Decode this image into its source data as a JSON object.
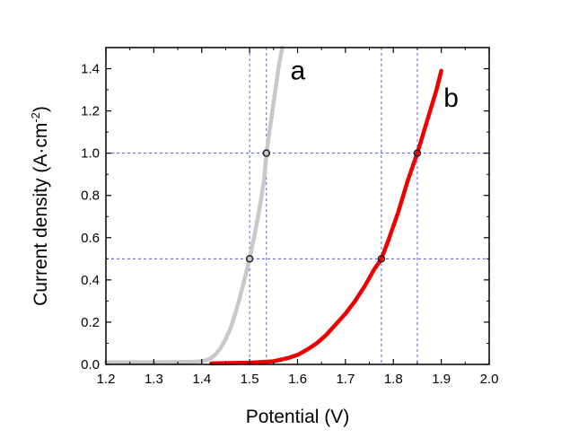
{
  "chart_data": {
    "type": "line",
    "title": "",
    "xlabel": "Potential (V)",
    "ylabel_parts": [
      "Current density (A·cm",
      "-2",
      ")"
    ],
    "xlim": [
      1.2,
      2.0
    ],
    "ylim": [
      0.0,
      1.5
    ],
    "xticks": [
      "1.2",
      "1.3",
      "1.4",
      "1.5",
      "1.6",
      "1.7",
      "1.8",
      "1.9",
      "2.0"
    ],
    "yticks": [
      "0.0",
      "0.2",
      "0.4",
      "0.6",
      "0.8",
      "1.0",
      "1.2",
      "1.4"
    ],
    "grid": false,
    "series": [
      {
        "name": "a",
        "color": "#c8c8c8",
        "x": [
          1.2,
          1.3,
          1.38,
          1.4,
          1.41,
          1.42,
          1.43,
          1.44,
          1.45,
          1.46,
          1.47,
          1.48,
          1.49,
          1.5,
          1.51,
          1.52,
          1.53,
          1.535,
          1.54,
          1.55,
          1.56,
          1.568
        ],
        "y": [
          0.01,
          0.01,
          0.012,
          0.015,
          0.02,
          0.03,
          0.05,
          0.08,
          0.12,
          0.17,
          0.24,
          0.32,
          0.41,
          0.5,
          0.61,
          0.73,
          0.87,
          1.0,
          1.08,
          1.24,
          1.4,
          1.5
        ]
      },
      {
        "name": "b",
        "color": "#ee0000",
        "x": [
          1.42,
          1.5,
          1.55,
          1.58,
          1.6,
          1.62,
          1.64,
          1.66,
          1.68,
          1.7,
          1.72,
          1.74,
          1.76,
          1.775,
          1.79,
          1.81,
          1.83,
          1.85,
          1.87,
          1.89,
          1.9
        ],
        "y": [
          0.005,
          0.008,
          0.015,
          0.03,
          0.045,
          0.07,
          0.1,
          0.14,
          0.19,
          0.24,
          0.3,
          0.37,
          0.45,
          0.5,
          0.59,
          0.72,
          0.87,
          1.0,
          1.15,
          1.3,
          1.39
        ]
      }
    ],
    "reference_lines": {
      "horizontal_y": [
        0.5,
        1.0
      ],
      "vertical_x": [
        1.5,
        1.535,
        1.775,
        1.85
      ],
      "style": "dashed",
      "color": "#3a3ac8"
    },
    "markers": [
      {
        "series": "a",
        "x": 1.5,
        "y": 0.5
      },
      {
        "series": "a",
        "x": 1.535,
        "y": 1.0
      },
      {
        "series": "b",
        "x": 1.775,
        "y": 0.5
      },
      {
        "series": "b",
        "x": 1.85,
        "y": 1.0
      }
    ],
    "curve_labels": [
      {
        "text": "a",
        "x": 1.585,
        "y": 1.35
      },
      {
        "text": "b",
        "x": 1.905,
        "y": 1.22
      }
    ]
  }
}
